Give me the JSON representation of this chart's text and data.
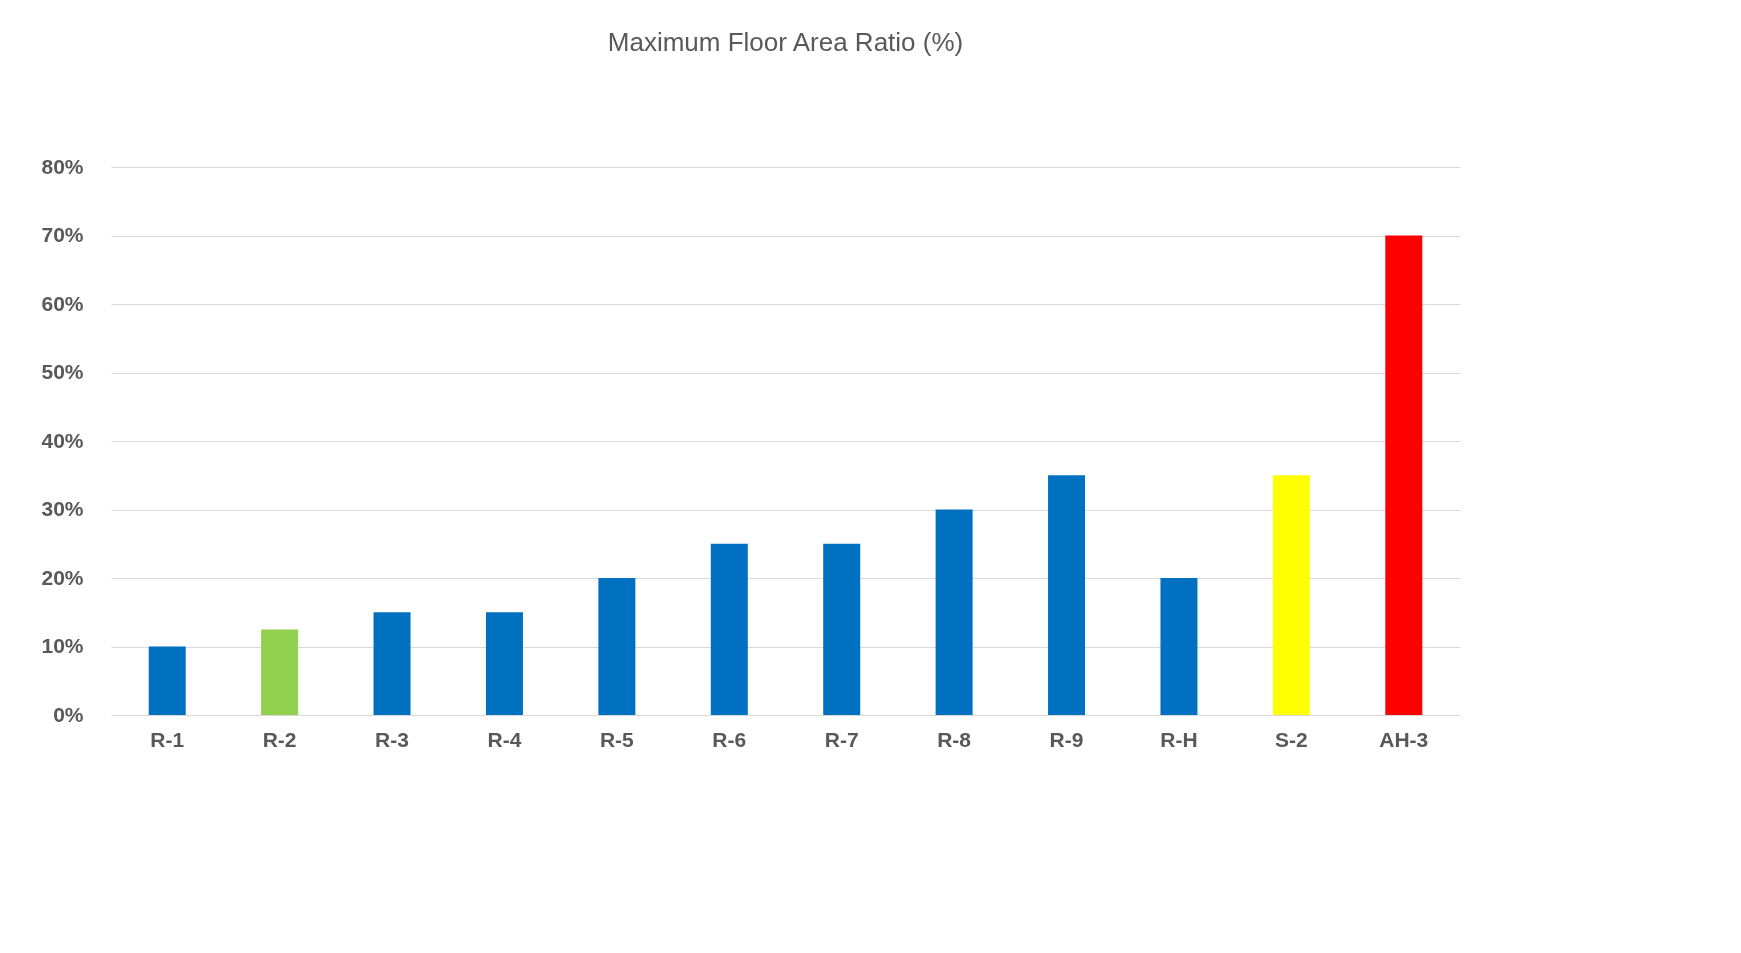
{
  "chart_data": {
    "type": "bar",
    "title": "Maximum Floor Area Ratio (%)",
    "categories": [
      "R-1",
      "R-2",
      "R-3",
      "R-4",
      "R-5",
      "R-6",
      "R-7",
      "R-8",
      "R-9",
      "R-H",
      "S-2",
      "AH-3"
    ],
    "values": [
      10,
      12.5,
      15,
      15,
      20,
      25,
      25,
      30,
      35,
      20,
      35,
      70
    ],
    "colors": [
      "#0070c0",
      "#92d050",
      "#0070c0",
      "#0070c0",
      "#0070c0",
      "#0070c0",
      "#0070c0",
      "#0070c0",
      "#0070c0",
      "#0070c0",
      "#ffff00",
      "#ff0000"
    ],
    "ylim": [
      0,
      80
    ],
    "yticks": [
      {
        "value": 0,
        "label": "0%"
      },
      {
        "value": 10,
        "label": "10%"
      },
      {
        "value": 20,
        "label": "20%"
      },
      {
        "value": 30,
        "label": "30%"
      },
      {
        "value": 40,
        "label": "40%"
      },
      {
        "value": 50,
        "label": "50%"
      },
      {
        "value": 60,
        "label": "60%"
      },
      {
        "value": 70,
        "label": "70%"
      },
      {
        "value": 80,
        "label": "80%"
      }
    ],
    "grid": "y",
    "legend": false
  }
}
